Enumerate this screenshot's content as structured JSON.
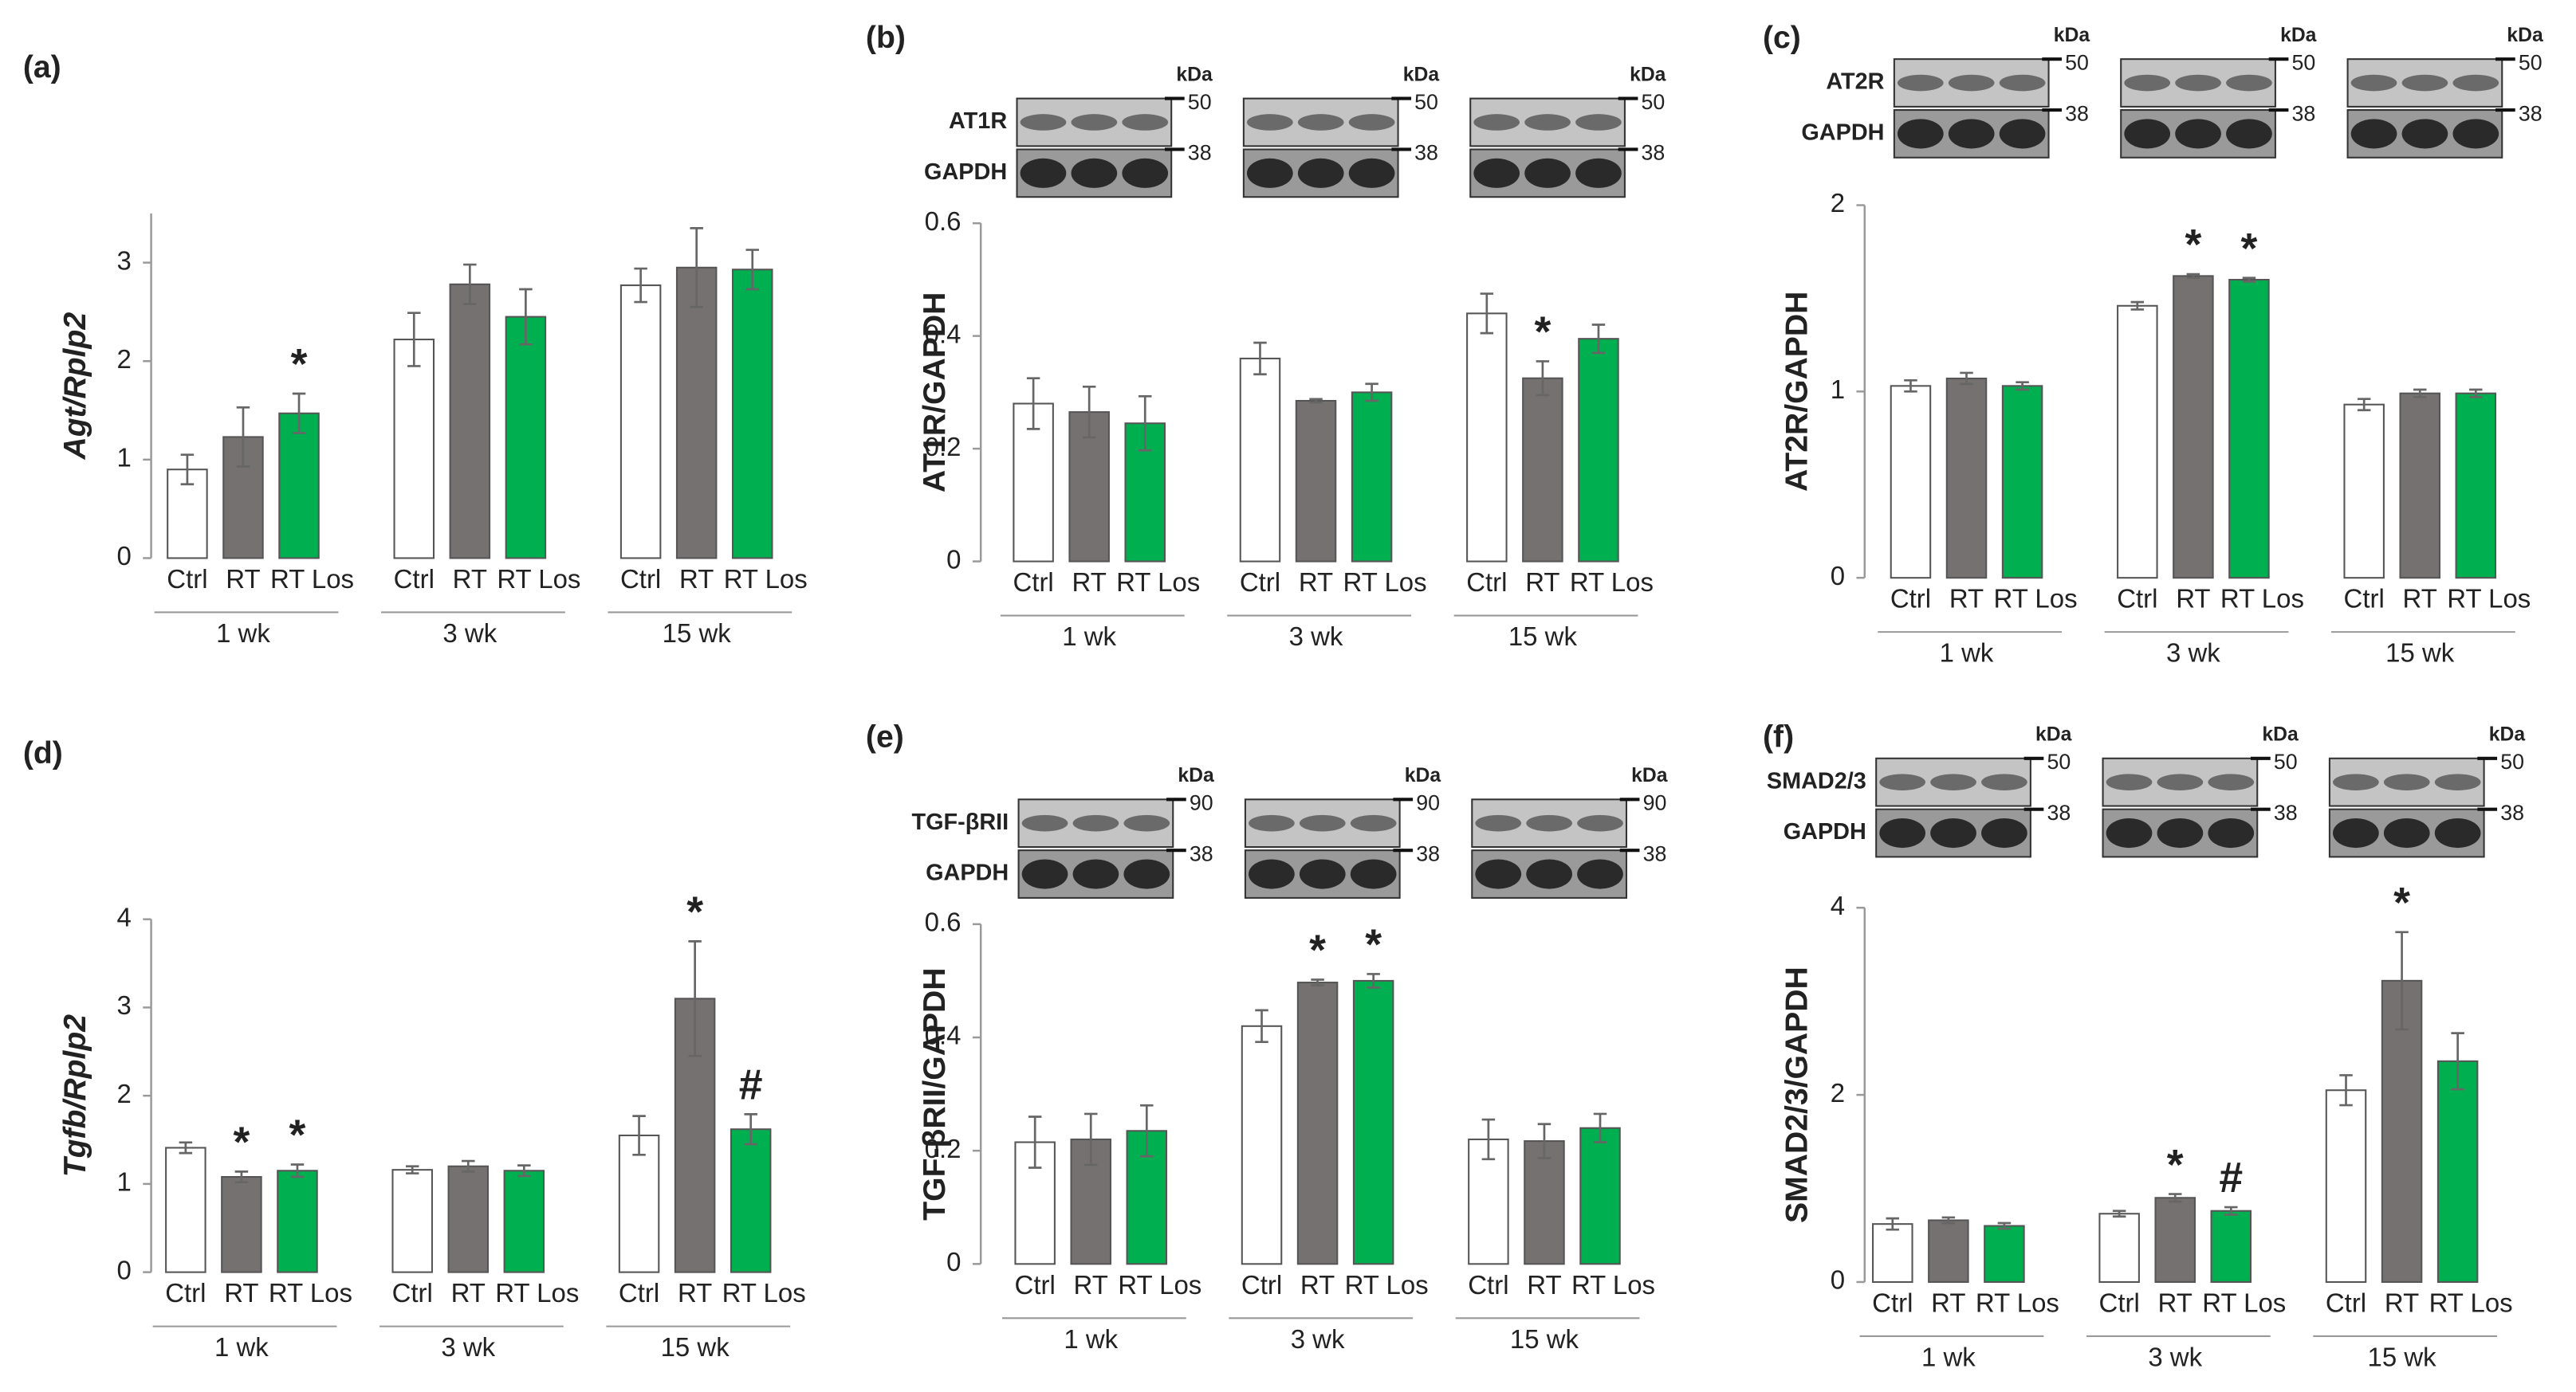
{
  "chart_data": [
    {
      "type": "bar",
      "panel": "(a)",
      "y_label": "Agt/Rplp2",
      "y_label_style": "italic",
      "categories": [
        "1 wk",
        "3 wk",
        "15 wk"
      ],
      "series": [
        {
          "name": "Ctrl",
          "color": "#ffffff",
          "values": [
            0.9,
            2.22,
            2.77
          ],
          "errors": [
            0.15,
            0.27,
            0.17
          ]
        },
        {
          "name": "RT",
          "color": "#767171",
          "values": [
            1.23,
            2.78,
            2.95
          ],
          "errors": [
            0.3,
            0.2,
            0.4
          ]
        },
        {
          "name": "RT Los",
          "color": "#00b050",
          "values": [
            1.47,
            2.45,
            2.93
          ],
          "errors": [
            0.2,
            0.28,
            0.2
          ]
        }
      ],
      "annotations": [
        {
          "text": "*",
          "series": 2,
          "category": 0
        }
      ],
      "ylim": [
        0,
        3.5
      ],
      "yticks": [
        0,
        1,
        2,
        3
      ]
    },
    {
      "type": "bar",
      "panel": "(b)",
      "y_label": "AT1R/GAPDH",
      "y_label_style": "normal",
      "categories": [
        "1 wk",
        "3 wk",
        "15 wk"
      ],
      "series": [
        {
          "name": "Ctrl",
          "color": "#ffffff",
          "values": [
            0.28,
            0.36,
            0.44
          ],
          "errors": [
            0.045,
            0.028,
            0.035
          ]
        },
        {
          "name": "RT",
          "color": "#767171",
          "values": [
            0.265,
            0.285,
            0.325
          ],
          "errors": [
            0.045,
            0.003,
            0.03
          ]
        },
        {
          "name": "RT Los",
          "color": "#00b050",
          "values": [
            0.245,
            0.3,
            0.395
          ],
          "errors": [
            0.048,
            0.015,
            0.025
          ]
        }
      ],
      "annotations": [
        {
          "text": "*",
          "series": 1,
          "category": 2
        }
      ],
      "blot": {
        "bands": [
          "AT1R",
          "GAPDH"
        ],
        "unit": "kDa",
        "markers": [
          50,
          38
        ]
      },
      "ylim": [
        0,
        0.6
      ],
      "yticks": [
        0,
        0.2,
        0.4,
        0.6
      ]
    },
    {
      "type": "bar",
      "panel": "(c)",
      "y_label": "AT2R/GAPDH",
      "y_label_style": "normal",
      "categories": [
        "1 wk",
        "3 wk",
        "15 wk"
      ],
      "series": [
        {
          "name": "Ctrl",
          "color": "#ffffff",
          "values": [
            1.03,
            1.46,
            0.93
          ],
          "errors": [
            0.03,
            0.02,
            0.03
          ]
        },
        {
          "name": "RT",
          "color": "#767171",
          "values": [
            1.07,
            1.62,
            0.99
          ],
          "errors": [
            0.03,
            0.01,
            0.02
          ]
        },
        {
          "name": "RT Los",
          "color": "#00b050",
          "values": [
            1.03,
            1.6,
            0.99
          ],
          "errors": [
            0.02,
            0.01,
            0.02
          ]
        }
      ],
      "annotations": [
        {
          "text": "*",
          "series": 1,
          "category": 1
        },
        {
          "text": "*",
          "series": 2,
          "category": 1
        }
      ],
      "blot": {
        "bands": [
          "AT2R",
          "GAPDH"
        ],
        "unit": "kDa",
        "markers": [
          50,
          38
        ]
      },
      "ylim": [
        0,
        2
      ],
      "yticks": [
        0,
        1,
        2
      ]
    },
    {
      "type": "bar",
      "panel": "(d)",
      "y_label": "Tgfb/Rplp2",
      "y_label_style": "italic",
      "categories": [
        "1 wk",
        "3 wk",
        "15 wk"
      ],
      "series": [
        {
          "name": "Ctrl",
          "color": "#ffffff",
          "values": [
            1.41,
            1.16,
            1.55
          ],
          "errors": [
            0.06,
            0.04,
            0.22
          ]
        },
        {
          "name": "RT",
          "color": "#767171",
          "values": [
            1.08,
            1.2,
            3.1
          ],
          "errors": [
            0.06,
            0.06,
            0.65
          ]
        },
        {
          "name": "RT Los",
          "color": "#00b050",
          "values": [
            1.15,
            1.15,
            1.62
          ],
          "errors": [
            0.07,
            0.06,
            0.17
          ]
        }
      ],
      "annotations": [
        {
          "text": "*",
          "series": 1,
          "category": 0
        },
        {
          "text": "*",
          "series": 2,
          "category": 0
        },
        {
          "text": "*",
          "series": 1,
          "category": 2
        },
        {
          "text": "#",
          "series": 2,
          "category": 2
        }
      ],
      "ylim": [
        0,
        4
      ],
      "yticks": [
        0,
        1,
        2,
        3,
        4
      ]
    },
    {
      "type": "bar",
      "panel": "(e)",
      "y_label": "TGF-βRII/GAPDH",
      "y_label_style": "normal",
      "categories": [
        "1 wk",
        "3 wk",
        "15 wk"
      ],
      "series": [
        {
          "name": "Ctrl",
          "color": "#ffffff",
          "values": [
            0.215,
            0.42,
            0.22
          ],
          "errors": [
            0.045,
            0.028,
            0.035
          ]
        },
        {
          "name": "RT",
          "color": "#767171",
          "values": [
            0.22,
            0.497,
            0.217
          ],
          "errors": [
            0.045,
            0.005,
            0.03
          ]
        },
        {
          "name": "RT Los",
          "color": "#00b050",
          "values": [
            0.235,
            0.5,
            0.24
          ],
          "errors": [
            0.045,
            0.012,
            0.025
          ]
        }
      ],
      "annotations": [
        {
          "text": "*",
          "series": 1,
          "category": 1
        },
        {
          "text": "*",
          "series": 2,
          "category": 1
        }
      ],
      "blot": {
        "bands": [
          "TGF-βRII",
          "GAPDH"
        ],
        "unit": "kDa",
        "markers": [
          90,
          38
        ]
      },
      "ylim": [
        0,
        0.6
      ],
      "yticks": [
        0,
        0.2,
        0.4,
        0.6
      ]
    },
    {
      "type": "bar",
      "panel": "(f)",
      "y_label": "SMAD2/3/GAPDH",
      "y_label_style": "normal",
      "categories": [
        "1 wk",
        "3 wk",
        "15 wk"
      ],
      "series": [
        {
          "name": "Ctrl",
          "color": "#ffffff",
          "values": [
            0.62,
            0.73,
            2.05
          ],
          "errors": [
            0.06,
            0.03,
            0.16
          ]
        },
        {
          "name": "RT",
          "color": "#767171",
          "values": [
            0.66,
            0.9,
            3.22
          ],
          "errors": [
            0.03,
            0.04,
            0.52
          ]
        },
        {
          "name": "RT Los",
          "color": "#00b050",
          "values": [
            0.6,
            0.76,
            2.36
          ],
          "errors": [
            0.03,
            0.04,
            0.3
          ]
        }
      ],
      "annotations": [
        {
          "text": "*",
          "series": 1,
          "category": 1
        },
        {
          "text": "#",
          "series": 2,
          "category": 1
        },
        {
          "text": "*",
          "series": 1,
          "category": 2
        }
      ],
      "blot": {
        "bands": [
          "SMAD2/3",
          "GAPDH"
        ],
        "unit": "kDa",
        "markers": [
          50,
          38
        ]
      },
      "ylim": [
        0,
        4
      ],
      "yticks": [
        0,
        2,
        4
      ]
    }
  ]
}
